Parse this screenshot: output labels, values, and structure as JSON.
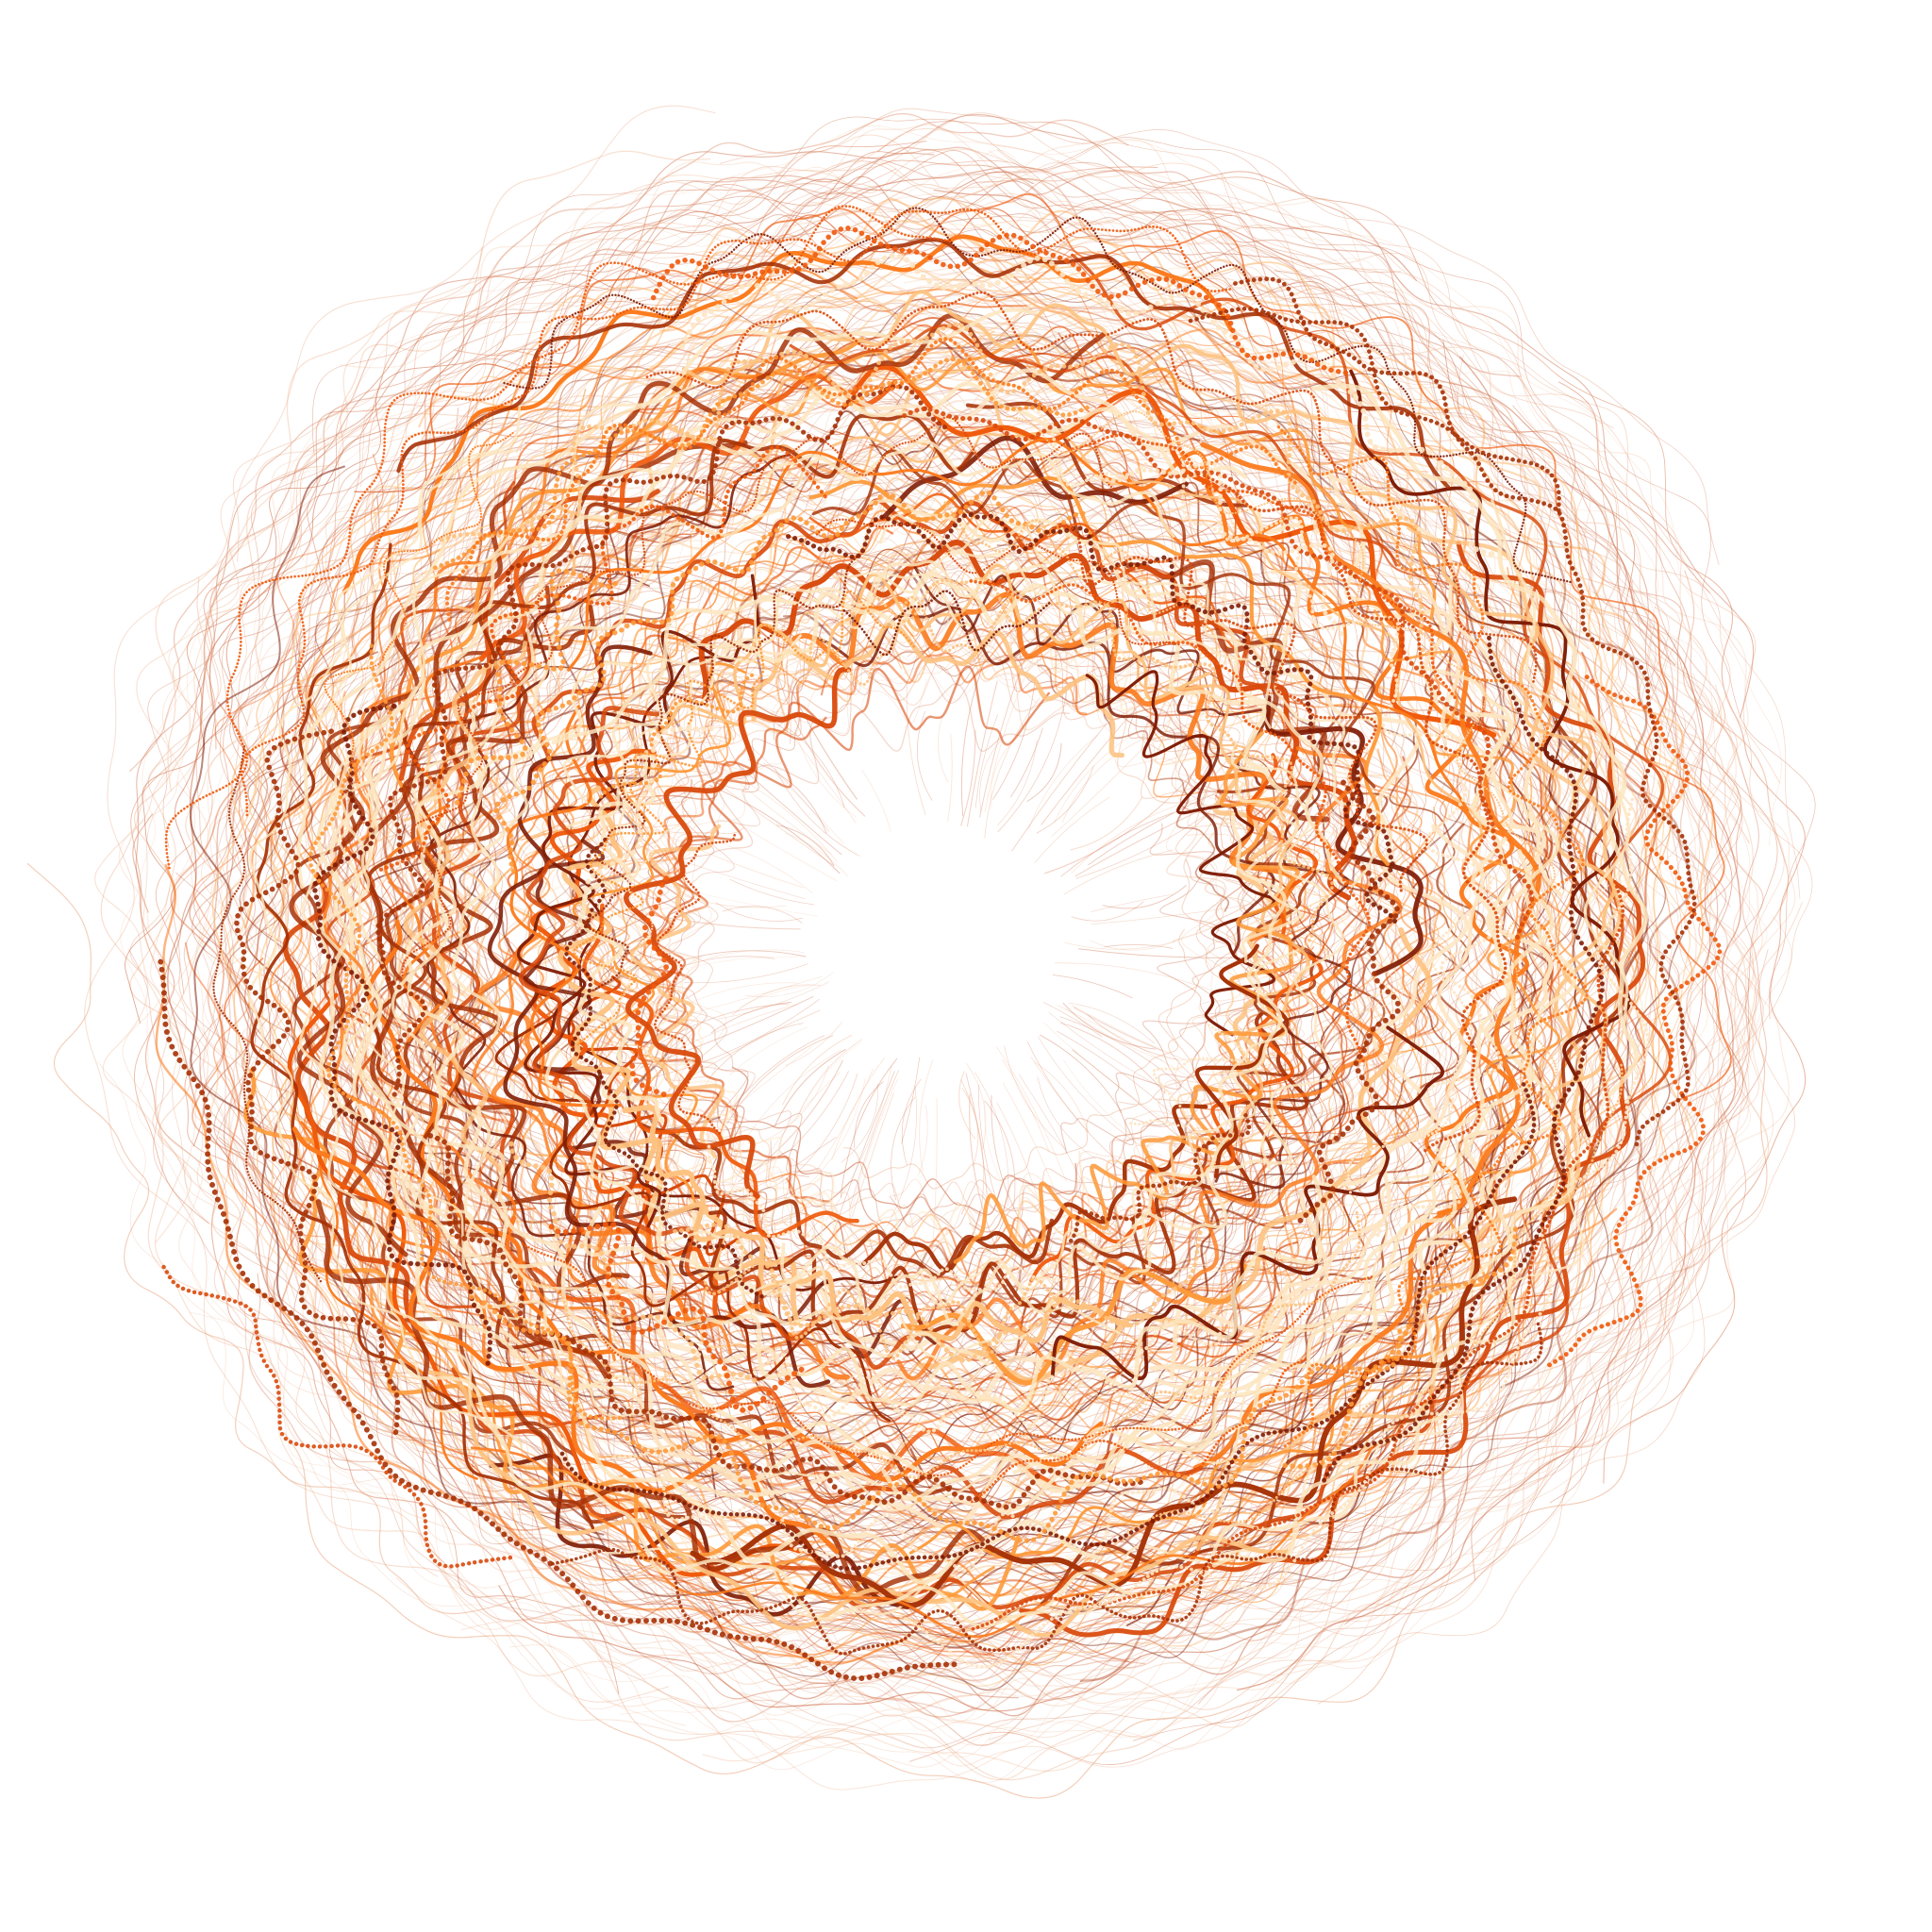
{
  "artwork": {
    "kind": "generative radial line art",
    "background": "#ffffff",
    "palette": [
      "#7f1d06",
      "#a63106",
      "#d94a0c",
      "#f05a0c",
      "#fb7a1c",
      "#fd9a3a",
      "#fdc280",
      "#fee6c4"
    ],
    "faint_palette": [
      "#e9a57f",
      "#d97c56",
      "#c9613a",
      "#f3c2a3"
    ]
  }
}
